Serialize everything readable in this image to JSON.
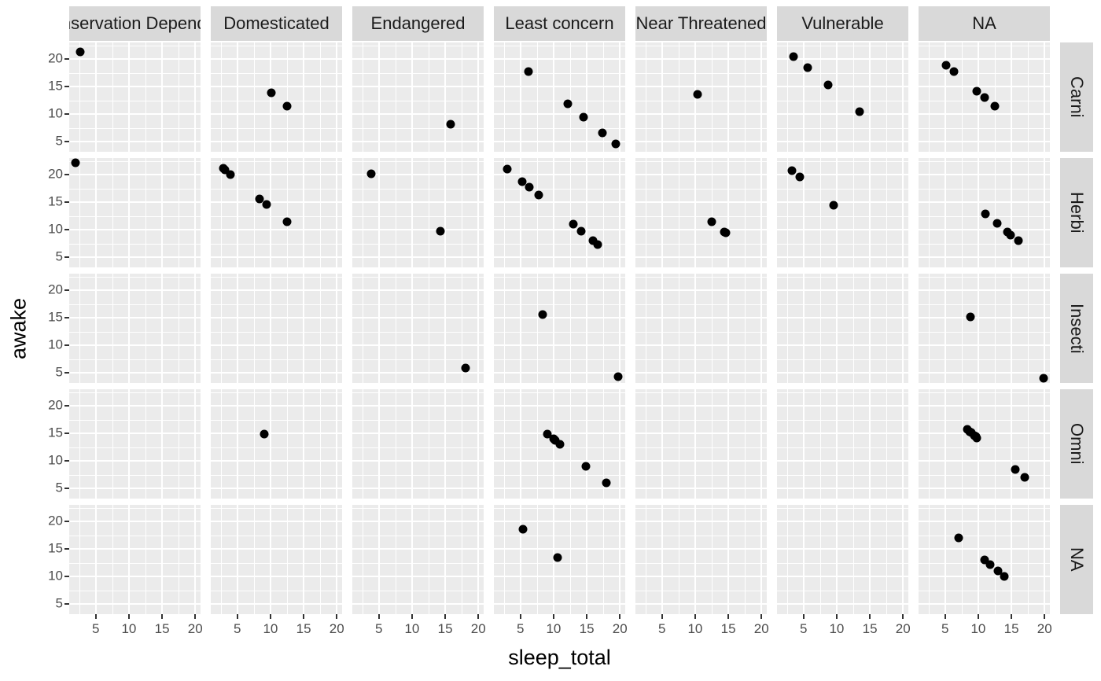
{
  "figure": {
    "x_title": "sleep_total",
    "y_title": "awake",
    "colors": {
      "background": "#FFFFFF",
      "panel_bg": "#EBEBEB",
      "strip_bg": "#D9D9D9",
      "strip_text": "#1A1A1A",
      "gridline": "#FFFFFF",
      "point": "#000000",
      "axis_text": "#4D4D4D",
      "tick_mark": "#333333",
      "axis_title": "#000000"
    }
  },
  "chart_data": {
    "type": "scatter",
    "title": "",
    "xlabel": "sleep_total",
    "ylabel": "awake",
    "facet_cols": [
      "Conservation Dependent",
      "Domesticated",
      "Endangered",
      "Least concern",
      "Near Threatened",
      "Vulnerable",
      "NA"
    ],
    "facet_rows": [
      "Carni",
      "Herbi",
      "Insecti",
      "Omni",
      "NA"
    ],
    "x_ticks": [
      5,
      10,
      15,
      20
    ],
    "y_ticks": [
      20,
      15,
      10,
      5
    ],
    "x_range": [
      1.0,
      20.8
    ],
    "y_range": [
      3.2,
      23.0
    ],
    "grid_major": [
      5,
      10,
      15,
      20
    ],
    "grid_minor_x": [
      2.5,
      7.5,
      12.5,
      17.5
    ],
    "grid_minor_y": [
      7.5,
      12.5,
      17.5,
      22.5
    ],
    "legend": "none",
    "facets": [
      {
        "row": "Carni",
        "col": "Conservation Dependent",
        "points": [
          [
            2.7,
            21.3
          ]
        ]
      },
      {
        "row": "Carni",
        "col": "Domesticated",
        "points": [
          [
            10.1,
            13.9
          ],
          [
            12.5,
            11.5
          ]
        ]
      },
      {
        "row": "Carni",
        "col": "Endangered",
        "points": [
          [
            15.8,
            8.2
          ]
        ]
      },
      {
        "row": "Carni",
        "col": "Least concern",
        "points": [
          [
            6.2,
            17.8
          ],
          [
            12.1,
            11.9
          ],
          [
            14.5,
            9.5
          ],
          [
            17.4,
            6.6
          ],
          [
            19.4,
            4.6
          ]
        ]
      },
      {
        "row": "Carni",
        "col": "Near Threatened",
        "points": [
          [
            10.4,
            13.6
          ]
        ]
      },
      {
        "row": "Carni",
        "col": "Vulnerable",
        "points": [
          [
            3.5,
            20.5
          ],
          [
            5.6,
            18.4
          ],
          [
            8.7,
            15.3
          ],
          [
            13.5,
            10.5
          ]
        ]
      },
      {
        "row": "Carni",
        "col": "NA",
        "points": [
          [
            5.2,
            18.8
          ],
          [
            6.3,
            17.7
          ],
          [
            9.8,
            14.2
          ],
          [
            11.0,
            13.0
          ],
          [
            12.5,
            11.5
          ]
        ]
      },
      {
        "row": "Herbi",
        "col": "Conservation Dependent",
        "points": [
          [
            1.9,
            22.1
          ]
        ]
      },
      {
        "row": "Herbi",
        "col": "Domesticated",
        "points": [
          [
            2.9,
            21.1
          ],
          [
            3.1,
            20.9
          ],
          [
            4.0,
            20.0
          ],
          [
            8.4,
            15.6
          ],
          [
            9.4,
            14.6
          ],
          [
            12.5,
            11.5
          ]
        ]
      },
      {
        "row": "Herbi",
        "col": "Endangered",
        "points": [
          [
            3.9,
            20.1
          ],
          [
            14.3,
            9.7
          ]
        ]
      },
      {
        "row": "Herbi",
        "col": "Least concern",
        "points": [
          [
            3.0,
            21.0
          ],
          [
            5.3,
            18.7
          ],
          [
            6.3,
            17.7
          ],
          [
            7.7,
            16.3
          ],
          [
            13.0,
            11.0
          ],
          [
            14.2,
            9.8
          ],
          [
            15.9,
            8.1
          ],
          [
            16.6,
            7.4
          ]
        ]
      },
      {
        "row": "Herbi",
        "col": "Near Threatened",
        "points": [
          [
            12.5,
            11.5
          ],
          [
            14.4,
            9.6
          ],
          [
            14.6,
            9.4
          ]
        ]
      },
      {
        "row": "Herbi",
        "col": "Vulnerable",
        "points": [
          [
            3.3,
            20.7
          ],
          [
            4.4,
            19.6
          ],
          [
            9.5,
            14.5
          ]
        ]
      },
      {
        "row": "Herbi",
        "col": "NA",
        "points": [
          [
            11.1,
            12.9
          ],
          [
            12.8,
            11.2
          ],
          [
            14.4,
            9.6
          ],
          [
            14.9,
            9.1
          ],
          [
            16.0,
            8.0
          ]
        ]
      },
      {
        "row": "Insecti",
        "col": "Endangered",
        "points": [
          [
            18.1,
            5.9
          ]
        ]
      },
      {
        "row": "Insecti",
        "col": "Least concern",
        "points": [
          [
            8.4,
            15.6
          ],
          [
            19.7,
            4.3
          ]
        ]
      },
      {
        "row": "Insecti",
        "col": "NA",
        "points": [
          [
            8.8,
            15.2
          ],
          [
            19.9,
            4.1
          ]
        ]
      },
      {
        "row": "Omni",
        "col": "Domesticated",
        "points": [
          [
            9.1,
            14.9
          ]
        ]
      },
      {
        "row": "Omni",
        "col": "Least concern",
        "points": [
          [
            9.1,
            14.9
          ],
          [
            10.0,
            14.0
          ],
          [
            10.1,
            13.9
          ],
          [
            10.3,
            13.7
          ],
          [
            10.9,
            13.1
          ],
          [
            14.9,
            9.1
          ],
          [
            18.0,
            6.0
          ]
        ]
      },
      {
        "row": "Omni",
        "col": "NA",
        "points": [
          [
            8.3,
            15.7
          ],
          [
            8.7,
            15.3
          ],
          [
            8.9,
            15.1
          ],
          [
            9.4,
            14.6
          ],
          [
            9.6,
            14.4
          ],
          [
            9.8,
            14.2
          ],
          [
            15.6,
            8.4
          ],
          [
            17.0,
            7.0
          ]
        ]
      },
      {
        "row": "NA",
        "col": "Least concern",
        "points": [
          [
            5.4,
            18.6
          ],
          [
            10.6,
            13.4
          ]
        ]
      },
      {
        "row": "NA",
        "col": "NA",
        "points": [
          [
            7.0,
            17.0
          ],
          [
            11.0,
            13.0
          ],
          [
            11.8,
            12.2
          ],
          [
            13.0,
            11.0
          ],
          [
            13.9,
            10.1
          ]
        ]
      }
    ]
  }
}
